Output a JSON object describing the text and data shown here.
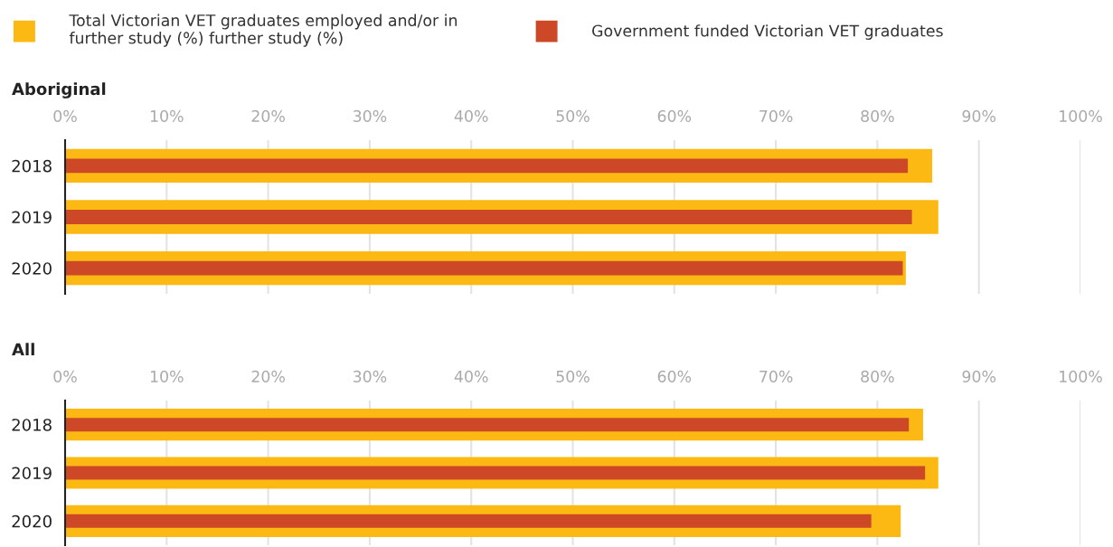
{
  "chart_data": [
    {
      "type": "bar",
      "orientation": "horizontal",
      "title": "Aboriginal",
      "categories": [
        "2018",
        "2019",
        "2020"
      ],
      "series": [
        {
          "name": "Total Victorian VET graduates employed and/or in further study (%) further study (%)",
          "color": "#fdb913",
          "values": [
            85.4,
            86.0,
            82.8
          ]
        },
        {
          "name": "Government funded Victorian VET graduates",
          "color": "#cc4827",
          "values": [
            83.0,
            83.4,
            82.5
          ]
        }
      ],
      "xlim": [
        0,
        100
      ],
      "xticks": [
        {
          "value": 0,
          "label": "0%"
        },
        {
          "value": 10,
          "label": "10%"
        },
        {
          "value": 20,
          "label": "20%"
        },
        {
          "value": 30,
          "label": "30%"
        },
        {
          "value": 40,
          "label": "40%"
        },
        {
          "value": 50,
          "label": "50%"
        },
        {
          "value": 60,
          "label": "60%"
        },
        {
          "value": 70,
          "label": "70%"
        },
        {
          "value": 80,
          "label": "80%"
        },
        {
          "value": 90,
          "label": "90%"
        },
        {
          "value": 100,
          "label": "100%"
        }
      ],
      "grid": "x",
      "legend": "top"
    },
    {
      "type": "bar",
      "orientation": "horizontal",
      "title": "All",
      "categories": [
        "2018",
        "2019",
        "2020"
      ],
      "series": [
        {
          "color": "#fdb913",
          "values": [
            84.5,
            86.0,
            82.3
          ]
        },
        {
          "color": "#cc4827",
          "values": [
            83.1,
            84.7,
            79.4
          ]
        }
      ],
      "xlim": [
        0,
        100
      ],
      "xticks": [
        {
          "value": 0,
          "label": "0%"
        },
        {
          "value": 10,
          "label": "10%"
        },
        {
          "value": 20,
          "label": "20%"
        },
        {
          "value": 30,
          "label": "30%"
        },
        {
          "value": 40,
          "label": "40%"
        },
        {
          "value": 50,
          "label": "50%"
        },
        {
          "value": 60,
          "label": "60%"
        },
        {
          "value": 70,
          "label": "70%"
        },
        {
          "value": 80,
          "label": "80%"
        },
        {
          "value": 90,
          "label": "90%"
        },
        {
          "value": 100,
          "label": "100%"
        }
      ],
      "grid": "x"
    }
  ]
}
